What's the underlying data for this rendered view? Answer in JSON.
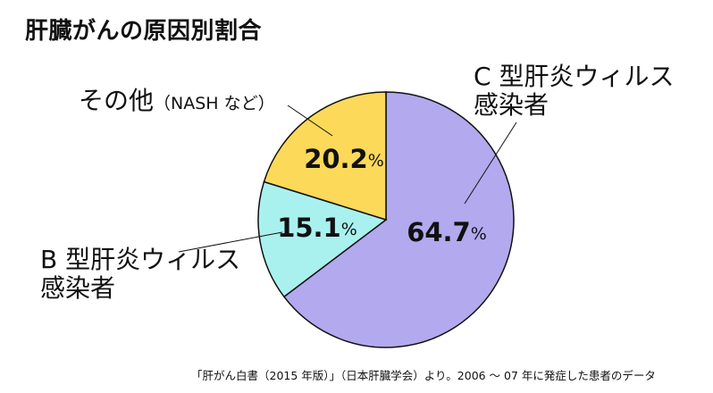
{
  "title": "肝臓がんの原因別割合",
  "source": "「肝がん白書（2015 年版）」（日本肝臓学会）より。2006 ～ 07 年に発症した患者のデータ",
  "labels": {
    "c_line1": "C 型肝炎ウィルス",
    "c_line2": "感染者",
    "b_line1": "B 型肝炎ウィルス",
    "b_line2": "感染者",
    "other_main": "その他",
    "other_note": "（NASH など）"
  },
  "colors": {
    "c": "#b3a9ee",
    "b": "#a9f1ef",
    "other": "#fdd95a",
    "outline": "#111111"
  },
  "chart_data": {
    "type": "pie",
    "title": "肝臓がんの原因別割合",
    "unit": "%",
    "slices": [
      {
        "key": "c",
        "value": 64.7,
        "label": "64.7",
        "color": "#b3a9ee"
      },
      {
        "key": "b",
        "value": 15.1,
        "label": "15.1",
        "color": "#a9f1ef"
      },
      {
        "key": "other",
        "value": 20.2,
        "label": "20.2",
        "color": "#fdd95a"
      }
    ]
  }
}
